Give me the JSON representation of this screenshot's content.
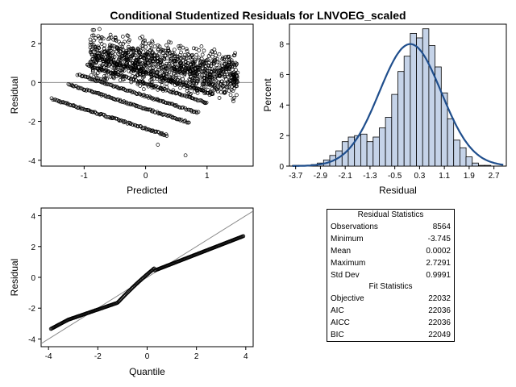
{
  "title": "Conditional Studentized Residuals for LNVOEG_scaled",
  "colors": {
    "hist_fill": "#c5d3e8",
    "density_line": "#1f4e8c",
    "reference_line": "#888888",
    "marker": "#000000"
  },
  "chart_data": [
    {
      "type": "scatter",
      "name": "residual-vs-predicted",
      "xlabel": "Predicted",
      "ylabel": "Residual",
      "xlim": [
        -1.7,
        1.75
      ],
      "ylim": [
        -4.3,
        3.0
      ],
      "x_ticks": [
        -1,
        0,
        1
      ],
      "y_ticks": [
        -4,
        -2,
        0,
        2
      ],
      "reference_line_y": 0,
      "bands": [
        {
          "x_start": -1.52,
          "x_end": 0.35,
          "y_at_start": -0.85,
          "slope": -1.0
        },
        {
          "x_start": -1.25,
          "x_end": 0.7,
          "y_at_start": -0.1,
          "slope": -1.0
        },
        {
          "x_start": -1.1,
          "x_end": 0.85,
          "y_at_start": 0.4,
          "slope": -1.0
        },
        {
          "x_start": -0.95,
          "x_end": 1.0,
          "y_at_start": 0.9,
          "slope": -1.0
        },
        {
          "x_start": -0.8,
          "x_end": 1.1,
          "y_at_start": 1.3,
          "slope": -1.0
        }
      ],
      "cloud": {
        "x_range": [
          -0.9,
          1.5
        ],
        "y_center_at_x0": 1.0,
        "slope": -0.5,
        "spread": 1.4
      },
      "outliers": [
        [
          0.65,
          -3.75
        ],
        [
          -0.75,
          2.75
        ],
        [
          0.2,
          -3.2
        ]
      ]
    },
    {
      "type": "histogram",
      "name": "residual-distribution",
      "xlabel": "Residual",
      "ylabel": "Percent",
      "xlim": [
        -3.9,
        3.1
      ],
      "ylim": [
        0,
        9.3
      ],
      "x_ticks": [
        "-3.7",
        "-2.9",
        "-2.1",
        "-1.3",
        "-0.5",
        "0.3",
        "1.1",
        "1.9",
        "2.7"
      ],
      "y_ticks": [
        0,
        2,
        4,
        6,
        8
      ],
      "bin_start": -3.8,
      "bin_width": 0.2,
      "values": [
        0.05,
        0.05,
        0.05,
        0.1,
        0.2,
        0.4,
        0.7,
        1.0,
        1.6,
        1.9,
        2.0,
        2.1,
        1.6,
        1.9,
        2.5,
        3.2,
        4.7,
        6.2,
        7.2,
        8.7,
        8.4,
        9.0,
        7.9,
        6.5,
        4.8,
        3.1,
        1.7,
        1.2,
        0.6,
        0.2,
        0.05,
        0.05
      ],
      "density": {
        "type": "normal",
        "mean": 0.0002,
        "sd": 0.9991,
        "peak_percent": 8.0
      }
    },
    {
      "type": "scatter",
      "name": "qq-plot",
      "xlabel": "Quantile",
      "ylabel": "Residual",
      "xlim": [
        -4.3,
        4.3
      ],
      "ylim": [
        -4.5,
        4.5
      ],
      "x_ticks": [
        -4,
        -2,
        0,
        2,
        4
      ],
      "y_ticks": [
        -4,
        -2,
        0,
        2,
        4
      ],
      "reference_line": {
        "intercept": 0,
        "slope": 1
      },
      "points_x_range": [
        -3.9,
        3.9
      ]
    }
  ],
  "stats": {
    "residual_header": "Residual Statistics",
    "fit_header": "Fit Statistics",
    "residual_rows": [
      {
        "label": "Observations",
        "value": "8564"
      },
      {
        "label": "Minimum",
        "value": "-3.745"
      },
      {
        "label": "Mean",
        "value": "0.0002"
      },
      {
        "label": "Maximum",
        "value": "2.7291"
      },
      {
        "label": "Std Dev",
        "value": "0.9991"
      }
    ],
    "fit_rows": [
      {
        "label": "Objective",
        "value": "22032"
      },
      {
        "label": "AIC",
        "value": "22036"
      },
      {
        "label": "AICC",
        "value": "22036"
      },
      {
        "label": "BIC",
        "value": "22049"
      }
    ]
  }
}
